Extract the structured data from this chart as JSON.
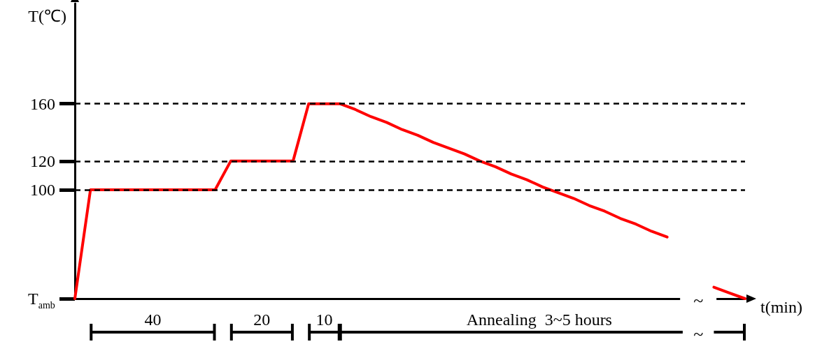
{
  "chart_data": {
    "type": "line",
    "ylabel": "T(℃)",
    "xlabel": "t(min)",
    "categories": [
      null,
      null,
      null,
      null,
      null,
      null,
      null,
      null,
      null,
      null,
      null,
      null,
      null,
      null,
      null,
      null,
      null,
      null,
      null,
      null,
      null,
      null,
      null,
      null,
      null,
      null,
      null,
      null,
      null,
      null,
      null,
      null,
      null,
      null,
      null,
      null,
      null,
      null,
      null,
      null,
      null,
      null,
      null,
      null
    ],
    "series": [
      {
        "color": "#ff0000",
        "values": [
          24,
          100,
          100,
          100,
          100,
          100,
          100,
          100,
          100,
          100,
          120,
          120,
          120,
          120,
          120,
          160,
          160,
          160,
          156,
          151,
          147,
          142,
          138,
          133,
          129,
          125,
          120,
          116,
          111,
          107,
          102,
          98,
          94,
          89,
          85,
          80,
          76,
          71,
          67,
          null,
          null,
          null,
          null,
          null
        ]
      },
      {
        "color": "#ff0000",
        "values": [
          null,
          null,
          null,
          null,
          null,
          null,
          null,
          null,
          null,
          null,
          null,
          null,
          null,
          null,
          null,
          null,
          null,
          null,
          null,
          null,
          null,
          null,
          null,
          null,
          null,
          null,
          null,
          null,
          null,
          null,
          null,
          null,
          null,
          null,
          null,
          null,
          null,
          null,
          null,
          null,
          null,
          32,
          28,
          24
        ]
      }
    ],
    "ylim": [
      24,
      230
    ],
    "yticks": [
      {
        "value": 24,
        "label": "T$_{amb}$"
      },
      100,
      120,
      160
    ],
    "ref_lines": [
      {
        "axis": "y",
        "value": 100,
        "label": null,
        "line_style": "dashed"
      },
      {
        "axis": "y",
        "value": 120,
        "label": null,
        "line_style": "dashed"
      },
      {
        "axis": "y",
        "value": 160,
        "label": null,
        "line_style": "dashed"
      }
    ],
    "tick_labels": "y",
    "marker": "none",
    "line_style": "solid",
    "annotations": [
      "40",
      "20",
      "10",
      "Annealing  3~5 hours",
      "~",
      "~"
    ]
  }
}
